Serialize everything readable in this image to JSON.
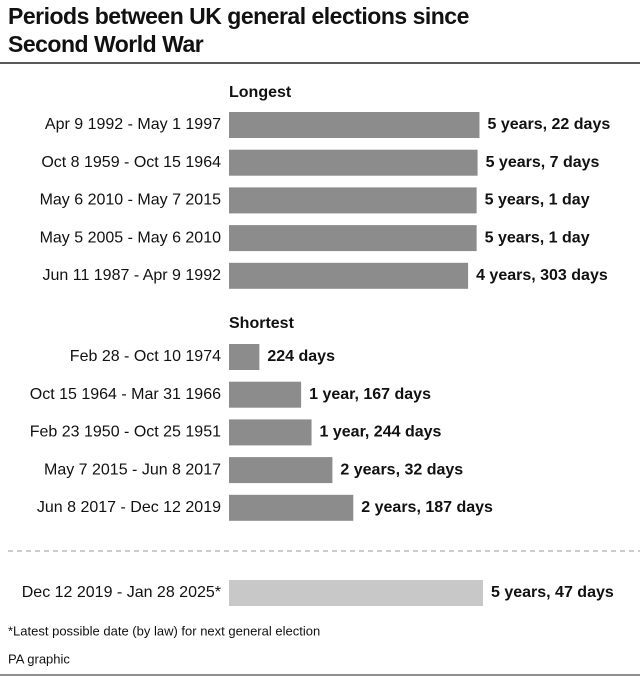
{
  "chart_data": {
    "type": "bar",
    "title": "Periods between UK general elections since Second World War",
    "groups": [
      {
        "name": "Longest",
        "color": "#8c8c8c",
        "categories": [
          "Apr 9 1992 - May 1 1997",
          "Oct 8 1959 - Oct 15 1964",
          "May 6 2010 - May 7 2015",
          "May 5 2005 - May 6 2010",
          "Jun 11 1987 - Apr 9 1992"
        ],
        "values": [
          1848,
          1834,
          1827,
          1827,
          1764
        ],
        "value_labels": [
          "5 years, 22 days",
          "5 years, 7 days",
          "5 years, 1 day",
          "5 years, 1 day",
          "4 years, 303 days"
        ]
      },
      {
        "name": "Shortest",
        "color": "#8c8c8c",
        "categories": [
          "Feb 28 - Oct 10 1974",
          "Oct 15 1964 - Mar 31 1966",
          "Feb 23 1950 - Oct 25 1951",
          "May 7 2015 - Jun 8 2017",
          "Jun 8 2017 - Dec 12 2019"
        ],
        "values": [
          224,
          532,
          609,
          763,
          917
        ],
        "value_labels": [
          "224 days",
          "1 year, 167 days",
          "1 year, 244 days",
          "2 years, 32 days",
          "2 years, 187 days"
        ]
      },
      {
        "color": "#c8c8c8",
        "categories": [
          "Dec 12 2019 - Jan 28 2025*"
        ],
        "values": [
          1874
        ],
        "value_labels": [
          "5 years, 47 days"
        ]
      }
    ],
    "footnote": "*Latest possible date (by law) for next general election",
    "source": "PA graphic"
  }
}
